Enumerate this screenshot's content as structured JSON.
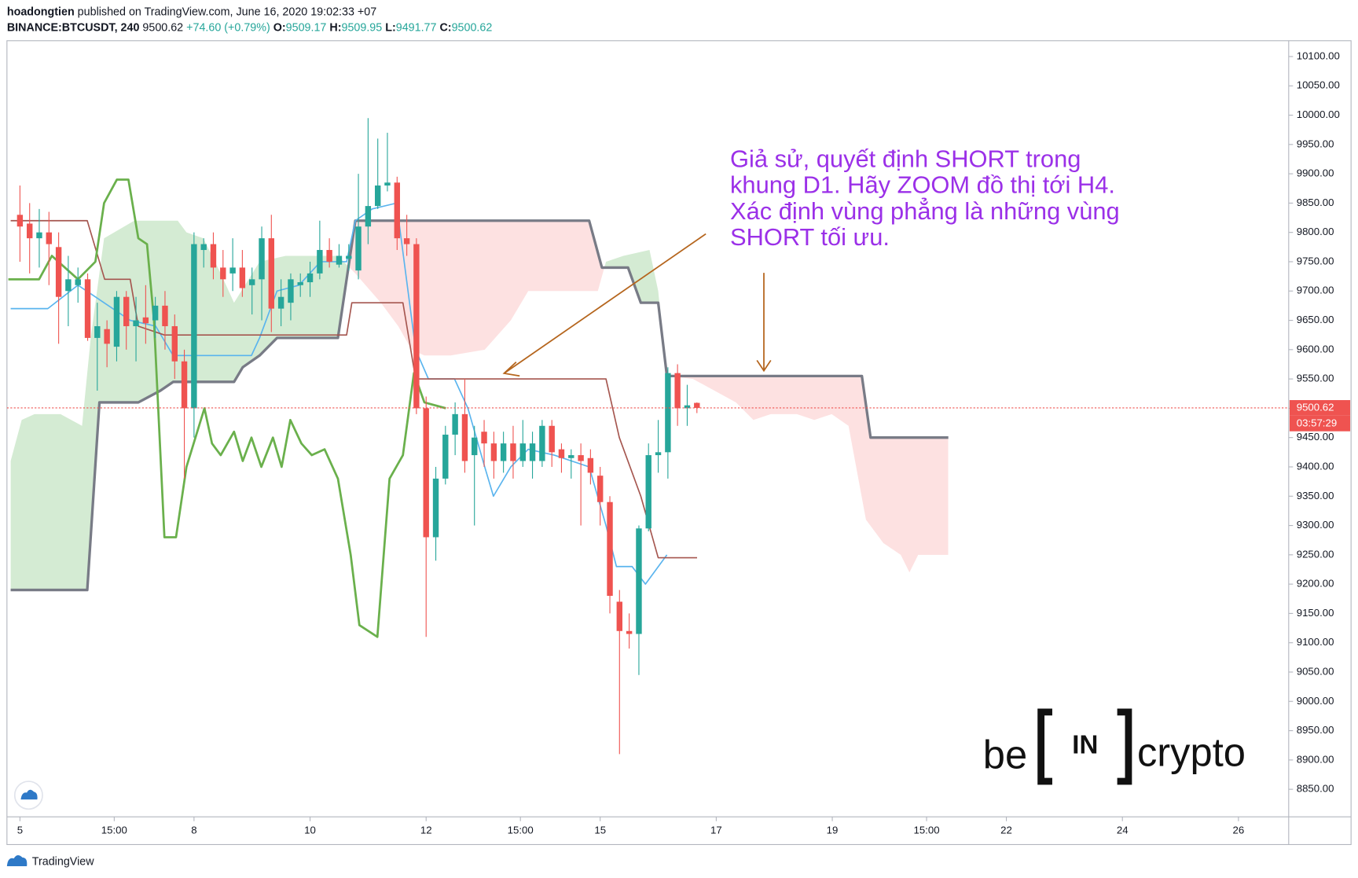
{
  "header": {
    "author": "hoadongtien",
    "published": " published on TradingView.com, June 16, 2020 19:02:33 +07",
    "symbol": "BINANCE:BTCUSDT, 240",
    "last": " 9500.62",
    "change": " +74.60 (+0.79%)",
    "o_label": " O:",
    "o": "9509.17",
    "h_label": " H:",
    "h": "9509.95",
    "l_label": " L:",
    "l": "9491.77",
    "c_label": " C:",
    "c": "9500.62"
  },
  "chart_data": {
    "type": "candlestick",
    "up_color": "#26a69a",
    "down_color": "#ef5350",
    "x": [
      5,
      5.167,
      5.333,
      5.5,
      5.667,
      5.833,
      6,
      6.167,
      6.333,
      6.5,
      6.667,
      6.833,
      7,
      7.167,
      7.333,
      7.5,
      7.667,
      7.833,
      8,
      8.167,
      8.333,
      8.5,
      8.667,
      8.833,
      9,
      9.167,
      9.333,
      9.5,
      9.667,
      9.833,
      10,
      10.167,
      10.333,
      10.5,
      10.667,
      10.833,
      11,
      11.167,
      11.333,
      11.5,
      11.667,
      11.833,
      12,
      12.167,
      12.333,
      12.5,
      12.667,
      12.833,
      13,
      13.167,
      13.333,
      13.5,
      13.667,
      13.833,
      14,
      14.167,
      14.333,
      14.5,
      14.667,
      14.833,
      15,
      15.167,
      15.333,
      15.5,
      15.667,
      15.833,
      16,
      16.167,
      16.333,
      16.5,
      16.667
    ],
    "open": [
      9830,
      9815,
      9790,
      9800,
      9775,
      9700,
      9710,
      9720,
      9620,
      9635,
      9605,
      9690,
      9640,
      9655,
      9650,
      9675,
      9640,
      9580,
      9500,
      9770,
      9780,
      9740,
      9730,
      9740,
      9710,
      9720,
      9790,
      9670,
      9680,
      9710,
      9715,
      9730,
      9770,
      9745,
      9755,
      9735,
      9810,
      9845,
      9880,
      9885,
      9790,
      9780,
      9500,
      9280,
      9380,
      9455,
      9490,
      9420,
      9460,
      9440,
      9410,
      9440,
      9410,
      9410,
      9410,
      9470,
      9430,
      9415,
      9420,
      9415,
      9385,
      9340,
      9170,
      9120,
      9115,
      9295,
      9420,
      9425,
      9560,
      9500,
      9509.17
    ],
    "high": [
      9880,
      9850,
      9840,
      9835,
      9800,
      9760,
      9740,
      9730,
      9680,
      9650,
      9700,
      9700,
      9690,
      9710,
      9690,
      9700,
      9660,
      9600,
      9800,
      9790,
      9800,
      9770,
      9790,
      9770,
      9740,
      9810,
      9830,
      9720,
      9730,
      9730,
      9750,
      9820,
      9790,
      9780,
      9780,
      9900,
      9995,
      9960,
      9970,
      9895,
      9830,
      9790,
      9520,
      9400,
      9470,
      9510,
      9550,
      9470,
      9480,
      9460,
      9460,
      9470,
      9480,
      9460,
      9480,
      9480,
      9440,
      9430,
      9440,
      9430,
      9400,
      9350,
      9190,
      9150,
      9300,
      9440,
      9480,
      9570,
      9575,
      9540,
      9509.95
    ],
    "low": [
      9750,
      9730,
      9740,
      9710,
      9610,
      9640,
      9680,
      9615,
      9530,
      9570,
      9580,
      9600,
      9580,
      9610,
      9620,
      9600,
      9550,
      9380,
      9450,
      9740,
      9720,
      9690,
      9700,
      9690,
      9660,
      9650,
      9630,
      9640,
      9650,
      9690,
      9690,
      9720,
      9740,
      9740,
      9735,
      9720,
      9780,
      9840,
      9870,
      9770,
      9760,
      9490,
      9110,
      9240,
      9370,
      9420,
      9390,
      9300,
      9400,
      9380,
      9390,
      9380,
      9400,
      9380,
      9400,
      9400,
      9390,
      9380,
      9300,
      9370,
      9300,
      9150,
      8910,
      9090,
      9045,
      9290,
      9390,
      9380,
      9470,
      9470,
      9491.77
    ],
    "close": [
      9810,
      9790,
      9800,
      9780,
      9690,
      9720,
      9720,
      9620,
      9640,
      9610,
      9690,
      9640,
      9650,
      9645,
      9675,
      9640,
      9580,
      9500,
      9780,
      9780,
      9740,
      9720,
      9740,
      9705,
      9720,
      9790,
      9670,
      9690,
      9720,
      9715,
      9730,
      9770,
      9750,
      9760,
      9760,
      9810,
      9845,
      9880,
      9885,
      9790,
      9780,
      9500,
      9280,
      9380,
      9455,
      9490,
      9410,
      9450,
      9440,
      9410,
      9440,
      9410,
      9440,
      9440,
      9470,
      9425,
      9415,
      9420,
      9410,
      9390,
      9340,
      9180,
      9120,
      9115,
      9295,
      9420,
      9425,
      9560,
      9500,
      9505,
      9500.62
    ],
    "overlays": [
      {
        "color": "#5ab4ee",
        "width": 1.5,
        "x": [
          4.84,
          5.48,
          6.0,
          6.9,
          7.34,
          7.64,
          8.99,
          9.13,
          9.43,
          9.81,
          10.18,
          10.63,
          10.78,
          11.07,
          11.49,
          11.82,
          12.04,
          12.49,
          12.72,
          13.01,
          13.16,
          13.46,
          13.76,
          14.21,
          14.81,
          15.1,
          15.28,
          15.55,
          15.78,
          16.15
        ],
        "values": [
          9670,
          9670,
          9710,
          9650,
          9640,
          9590,
          9590,
          9620,
          9700,
          9710,
          9750,
          9750,
          9820,
          9840,
          9850,
          9600,
          9550,
          9550,
          9500,
          9400,
          9350,
          9400,
          9430,
          9420,
          9400,
          9300,
          9230,
          9230,
          9200,
          9250
        ]
      },
      {
        "color": "#a5564f",
        "width": 1.5,
        "x": [
          4.84,
          6.16,
          6.31,
          6.46,
          6.9,
          7.04,
          7.34,
          7.49,
          10.63,
          10.72,
          11.6,
          11.82,
          15.1,
          15.33,
          15.7,
          16.0,
          16.67
        ],
        "values": [
          9820,
          9820,
          9770,
          9720,
          9720,
          9640,
          9630,
          9625,
          9625,
          9680,
          9680,
          9550,
          9550,
          9450,
          9350,
          9245,
          9245
        ]
      },
      {
        "color": "#6ab04c",
        "width": 2.5,
        "x": [
          4.8,
          5.18,
          5.33,
          5.55,
          6.0,
          6.3,
          6.45,
          6.67,
          6.87,
          7.04,
          7.19,
          7.31,
          7.49,
          7.69,
          7.87,
          8.18,
          8.31,
          8.46,
          8.69,
          8.84,
          8.99,
          9.16,
          9.36,
          9.51,
          9.66,
          9.85,
          10.03,
          10.25,
          10.48,
          10.7,
          10.85,
          11.16,
          11.37,
          11.6,
          11.79,
          11.97,
          12.34
        ],
        "values": [
          9720,
          9720,
          9720,
          9760,
          9720,
          9750,
          9850,
          9890,
          9890,
          9790,
          9780,
          9650,
          9280,
          9280,
          9400,
          9500,
          9440,
          9420,
          9460,
          9410,
          9450,
          9400,
          9450,
          9400,
          9480,
          9440,
          9420,
          9430,
          9380,
          9250,
          9130,
          9110,
          9380,
          9420,
          9560,
          9510,
          9500
        ]
      }
    ],
    "cloud": {
      "up_color": "#d4ebd3",
      "down_color": "#fde1e1",
      "a": {
        "x": [
          4.84,
          5.03,
          5.25,
          5.7,
          6.07,
          6.22,
          6.45,
          6.97,
          7.72,
          7.87,
          8.16,
          8.46,
          8.69,
          9.13,
          9.58,
          10.03,
          10.48,
          10.78,
          11.22,
          11.52,
          11.75,
          11.97,
          12.42,
          13.01,
          13.46,
          13.76,
          14.96,
          15.1,
          15.4,
          15.85,
          16.0,
          16.15,
          16.6,
          17.34,
          17.64,
          17.94,
          18.39,
          18.69,
          18.99,
          19.28,
          19.58,
          19.88,
          20.18,
          20.33,
          20.48,
          21.0
        ],
        "values": [
          9410,
          9480,
          9490,
          9490,
          9470,
          9620,
          9790,
          9820,
          9820,
          9800,
          9790,
          9730,
          9680,
          9750,
          9760,
          9760,
          9760,
          9730,
          9680,
          9640,
          9600,
          9590,
          9590,
          9600,
          9650,
          9700,
          9700,
          9750,
          9760,
          9770,
          9700,
          9555,
          9550,
          9510,
          9480,
          9490,
          9490,
          9480,
          9490,
          9470,
          9310,
          9270,
          9250,
          9220,
          9250,
          9250
        ]
      },
      "b": {
        "color": "#787b86",
        "width": 3,
        "x": [
          4.84,
          6.16,
          6.37,
          7.04,
          7.42,
          7.64,
          8.69,
          8.84,
          9.13,
          9.43,
          10.48,
          10.78,
          14.81,
          15.03,
          15.48,
          15.7,
          16.0,
          16.15,
          19.51,
          19.66,
          21.0
        ],
        "values": [
          9190,
          9190,
          9510,
          9510,
          9530,
          9545,
          9545,
          9570,
          9590,
          9620,
          9620,
          9820,
          9820,
          9740,
          9740,
          9680,
          9680,
          9555,
          9555,
          9450,
          9450
        ]
      }
    },
    "last_price": 9500.62,
    "last_price_color": "#ef5350",
    "countdown": "03:57:29",
    "xlim": [
      4.776,
      26.866
    ],
    "xticks": [
      {
        "value": 5,
        "label": "5"
      },
      {
        "value": 6.625,
        "label": "15:00"
      },
      {
        "value": 8,
        "label": "8"
      },
      {
        "value": 10,
        "label": "10"
      },
      {
        "value": 12,
        "label": "12"
      },
      {
        "value": 13.625,
        "label": "15:00"
      },
      {
        "value": 15,
        "label": "15"
      },
      {
        "value": 17,
        "label": "17"
      },
      {
        "value": 19,
        "label": "19"
      },
      {
        "value": 20.625,
        "label": "15:00"
      },
      {
        "value": 22,
        "label": "22"
      },
      {
        "value": 24,
        "label": "24"
      },
      {
        "value": 26,
        "label": "26"
      }
    ],
    "ylim": [
      8803,
      10127
    ],
    "yticks": [
      {
        "value": 8850,
        "label": "8850.00"
      },
      {
        "value": 8900,
        "label": "8900.00"
      },
      {
        "value": 8950,
        "label": "8950.00"
      },
      {
        "value": 9000,
        "label": "9000.00"
      },
      {
        "value": 9050,
        "label": "9050.00"
      },
      {
        "value": 9100,
        "label": "9100.00"
      },
      {
        "value": 9150,
        "label": "9150.00"
      },
      {
        "value": 9200,
        "label": "9200.00"
      },
      {
        "value": 9250,
        "label": "9250.00"
      },
      {
        "value": 9300,
        "label": "9300.00"
      },
      {
        "value": 9350,
        "label": "9350.00"
      },
      {
        "value": 9400,
        "label": "9400.00"
      },
      {
        "value": 9450,
        "label": "9450.00"
      },
      {
        "value": 9500,
        "label": "9500.00"
      },
      {
        "value": 9550,
        "label": "9550.00"
      },
      {
        "value": 9600,
        "label": "9600.00"
      },
      {
        "value": 9650,
        "label": "9650.00"
      },
      {
        "value": 9700,
        "label": "9700.00"
      },
      {
        "value": 9750,
        "label": "9750.00"
      },
      {
        "value": 9800,
        "label": "9800.00"
      },
      {
        "value": 9850,
        "label": "9850.00"
      },
      {
        "value": 9900,
        "label": "9900.00"
      },
      {
        "value": 9950,
        "label": "9950.00"
      },
      {
        "value": 10000,
        "label": "10000.00"
      },
      {
        "value": 10050,
        "label": "10050.00"
      },
      {
        "value": 10100,
        "label": "10100.00"
      }
    ],
    "grid": false
  },
  "annotation": {
    "lines": [
      "Giả sử, quyết định SHORT trong",
      "khung D1. Hãy ZOOM đồ thị tới H4.",
      "Xác định vùng phẳng là những vùng",
      "SHORT tối ưu."
    ]
  },
  "watermark": {
    "left": "be",
    "middle": "IN",
    "right": "crypto"
  },
  "footer": {
    "brand": "TradingView"
  }
}
